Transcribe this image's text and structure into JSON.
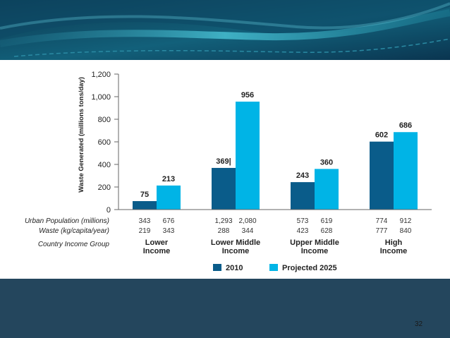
{
  "slide": {
    "number": "32"
  },
  "chart_data": {
    "type": "bar",
    "ylabel": "Waste Generated (millions tons/day)",
    "ylim": [
      0,
      1200
    ],
    "yticks": [
      "0",
      "200",
      "400",
      "600",
      "800",
      "1,000",
      "1,200"
    ],
    "ytick_values": [
      0,
      200,
      400,
      600,
      800,
      1000,
      1200
    ],
    "categories": [
      "Lower Income",
      "Lower Middle Income",
      "Upper Middle Income",
      "High Income"
    ],
    "category_labels": [
      [
        "Lower",
        "Income"
      ],
      [
        "Lower Middle",
        "Income"
      ],
      [
        "Upper Middle",
        "Income"
      ],
      [
        "High",
        "Income"
      ]
    ],
    "series": [
      {
        "name": "2010",
        "color": "#0a5c8a",
        "values": [
          75,
          369,
          243,
          602
        ],
        "labels": [
          "75",
          "369|",
          "243",
          "602"
        ]
      },
      {
        "name": "Projected 2025",
        "color": "#00b4e6",
        "values": [
          213,
          956,
          360,
          686
        ],
        "labels": [
          "213",
          "956",
          "360",
          "686"
        ]
      }
    ],
    "row_headers": [
      "Urban Population (millions)",
      "Waste (kg/capita/year)",
      "Country Income Group"
    ],
    "urban_population": [
      [
        "343",
        "676"
      ],
      [
        "1,293",
        "2,080"
      ],
      [
        "573",
        "619"
      ],
      [
        "774",
        "912"
      ]
    ],
    "waste_per_capita": [
      [
        "219",
        "343"
      ],
      [
        "288",
        "344"
      ],
      [
        "423",
        "628"
      ],
      [
        "777",
        "840"
      ]
    ]
  }
}
